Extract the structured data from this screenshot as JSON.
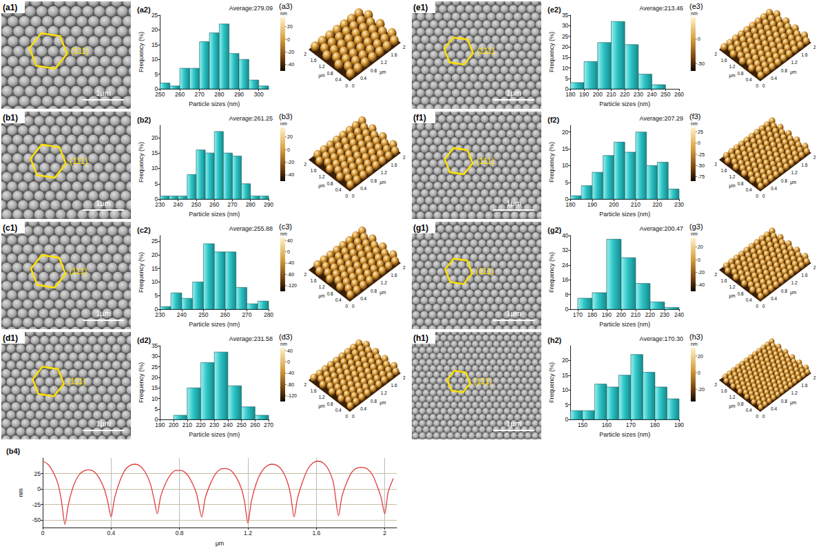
{
  "chart_data": [
    {
      "type": "histogram",
      "title": "(a2)",
      "annotation": "Average:279.09",
      "x_label": "Particle sizes (nm)",
      "y_label": "Frequency (%)",
      "bins": [
        250,
        255,
        260,
        265,
        270,
        275,
        280,
        285,
        290,
        295,
        300,
        305
      ],
      "values": [
        2,
        1,
        7,
        7,
        16,
        19,
        22,
        12,
        10,
        3,
        1
      ],
      "color": "#2ec4c6",
      "xlim": [
        250,
        305
      ],
      "xticks": [
        250,
        260,
        270,
        280,
        290,
        300
      ],
      "ylim": [
        0,
        25
      ],
      "yticks": [
        0,
        5,
        10,
        15,
        20,
        25
      ],
      "grid": false
    },
    {
      "type": "histogram",
      "title": "(b2)",
      "annotation": "Average:261.25",
      "x_label": "Particle sizes (nm)",
      "y_label": "Frequency (%)",
      "bins": [
        230,
        235,
        240,
        245,
        250,
        255,
        260,
        265,
        270,
        275,
        280,
        285,
        290
      ],
      "values": [
        1,
        1,
        1,
        8,
        16,
        15,
        22,
        15,
        14,
        5,
        1,
        1
      ],
      "color": "#2ec4c6",
      "xlim": [
        230,
        290
      ],
      "xticks": [
        230,
        240,
        250,
        260,
        270,
        280,
        290
      ],
      "ylim": [
        0,
        24
      ],
      "yticks": [
        0,
        5,
        10,
        15,
        20
      ],
      "grid": false
    },
    {
      "type": "histogram",
      "title": "(c2)",
      "annotation": "Average:255.88",
      "x_label": "Particle sizes (nm)",
      "y_label": "Frequency (%)",
      "bins": [
        230,
        235,
        240,
        245,
        250,
        255,
        260,
        265,
        270,
        275,
        280
      ],
      "values": [
        1,
        6,
        4,
        10,
        24,
        21,
        21,
        8,
        2,
        3
      ],
      "color": "#2ec4c6",
      "xlim": [
        230,
        280
      ],
      "xticks": [
        230,
        240,
        250,
        260,
        270,
        280
      ],
      "ylim": [
        0,
        27
      ],
      "yticks": [
        0,
        5,
        10,
        15,
        20,
        25
      ],
      "grid": false
    },
    {
      "type": "histogram",
      "title": "(d2)",
      "annotation": "Average:231.58",
      "x_label": "Particle sizes (nm)",
      "y_label": "Frequency (%)",
      "bins": [
        200,
        210,
        220,
        230,
        240,
        250,
        260,
        270
      ],
      "values": [
        2,
        15,
        27,
        32,
        16,
        6,
        2
      ],
      "color": "#2ec4c6",
      "xlim": [
        190,
        270
      ],
      "xticks": [
        190,
        200,
        210,
        220,
        230,
        240,
        250,
        260,
        270
      ],
      "ylim": [
        0,
        35
      ],
      "yticks": [
        0,
        5,
        10,
        15,
        20,
        25,
        30,
        35
      ],
      "grid": false
    },
    {
      "type": "histogram",
      "title": "(e2)",
      "annotation": "Average:213.46",
      "x_label": "Particle sizes (nm)",
      "y_label": "Frequency (%)",
      "bins": [
        180,
        190,
        200,
        210,
        220,
        230,
        240,
        250
      ],
      "values": [
        3,
        13,
        22,
        32,
        21,
        7,
        2
      ],
      "color": "#2ec4c6",
      "xlim": [
        180,
        260
      ],
      "xticks": [
        180,
        190,
        200,
        210,
        220,
        230,
        240,
        250,
        260
      ],
      "ylim": [
        0,
        35
      ],
      "yticks": [
        0,
        5,
        10,
        15,
        20,
        25,
        30,
        35
      ],
      "grid": false
    },
    {
      "type": "histogram",
      "title": "(f2)",
      "annotation": "Average:207.29",
      "x_label": "Particle sizes (nm)",
      "y_label": "Frequency (%)",
      "bins": [
        180,
        185,
        190,
        195,
        200,
        205,
        210,
        215,
        220,
        225,
        230
      ],
      "values": [
        1,
        4,
        8,
        13,
        17,
        14,
        20,
        10,
        11,
        3
      ],
      "color": "#2ec4c6",
      "xlim": [
        180,
        230
      ],
      "xticks": [
        180,
        190,
        200,
        210,
        220,
        230
      ],
      "ylim": [
        0,
        22
      ],
      "yticks": [
        0,
        5,
        10,
        15,
        20
      ],
      "grid": false
    },
    {
      "type": "histogram",
      "title": "(g2)",
      "annotation": "Average:200.47",
      "x_label": "Particle sizes (nm)",
      "y_label": "Frequency (%)",
      "bins": [
        170,
        180,
        190,
        200,
        210,
        220,
        230,
        240
      ],
      "values": [
        6,
        9,
        38,
        28,
        14,
        4,
        1
      ],
      "color": "#2ec4c6",
      "xlim": [
        165,
        240
      ],
      "xticks": [
        170,
        180,
        190,
        200,
        210,
        220,
        230,
        240
      ],
      "ylim": [
        0,
        40
      ],
      "yticks": [
        0,
        8,
        16,
        24,
        32,
        40
      ],
      "grid": false
    },
    {
      "type": "histogram",
      "title": "(h2)",
      "annotation": "Average:170.30",
      "x_label": "Particle sizes (nm)",
      "y_label": "Frequency (%)",
      "bins": [
        145,
        150,
        155,
        160,
        165,
        170,
        175,
        180,
        185,
        190
      ],
      "values": [
        3,
        3,
        12,
        11,
        15,
        22,
        16,
        11,
        7
      ],
      "color": "#2ec4c6",
      "xlim": [
        145,
        190
      ],
      "xticks": [
        150,
        160,
        170,
        180,
        190
      ],
      "ylim": [
        0,
        25
      ],
      "yticks": [
        0,
        5,
        10,
        15,
        20
      ],
      "grid": false
    },
    {
      "type": "line",
      "title": "(b4)",
      "x_label": "μm",
      "y_label": "nm",
      "color": "#e03a3a",
      "grid": true,
      "x": [
        0,
        0.03,
        0.06,
        0.09,
        0.11,
        0.13,
        0.15,
        0.18,
        0.21,
        0.24,
        0.27,
        0.3,
        0.33,
        0.36,
        0.38,
        0.4,
        0.42,
        0.45,
        0.48,
        0.51,
        0.54,
        0.57,
        0.6,
        0.63,
        0.65,
        0.67,
        0.69,
        0.72,
        0.75,
        0.78,
        0.81,
        0.84,
        0.87,
        0.9,
        0.93,
        0.95,
        0.98,
        1.01,
        1.04,
        1.07,
        1.1,
        1.13,
        1.16,
        1.18,
        1.2,
        1.22,
        1.25,
        1.28,
        1.31,
        1.34,
        1.37,
        1.4,
        1.43,
        1.45,
        1.47,
        1.49,
        1.52,
        1.55,
        1.58,
        1.61,
        1.64,
        1.67,
        1.7,
        1.73,
        1.75,
        1.78,
        1.81,
        1.84,
        1.87,
        1.9,
        1.93,
        1.96,
        1.98,
        2.0,
        2.02,
        2.05
      ],
      "values": [
        45,
        40,
        28,
        8,
        -20,
        -57,
        -25,
        5,
        22,
        29,
        31,
        28,
        18,
        0,
        -20,
        -45,
        -15,
        12,
        30,
        38,
        40,
        37,
        27,
        8,
        -15,
        -40,
        -12,
        10,
        24,
        30,
        30,
        25,
        12,
        -8,
        -45,
        -15,
        8,
        24,
        32,
        33,
        30,
        20,
        2,
        -20,
        -55,
        -20,
        10,
        28,
        37,
        40,
        38,
        30,
        12,
        -10,
        -45,
        -15,
        12,
        32,
        42,
        45,
        42,
        32,
        10,
        -43,
        -12,
        12,
        28,
        34,
        35,
        32,
        22,
        2,
        -15,
        -40,
        -5,
        17
      ],
      "xlim": [
        0,
        2.07
      ],
      "xticks": [
        0,
        0.4,
        0.8,
        1.2,
        1.6,
        2
      ],
      "ylim": [
        -62,
        50
      ],
      "yticks": [
        -50,
        -25,
        0,
        25
      ]
    }
  ],
  "sem_images": [
    {
      "label": "(a1)",
      "plane": "(111)",
      "scale_bar": "1μm"
    },
    {
      "label": "(b1)",
      "plane": "(111)",
      "scale_bar": "1μm"
    },
    {
      "label": "(c1)",
      "plane": "(111)",
      "scale_bar": "1μm"
    },
    {
      "label": "(d1)",
      "plane": "(111)",
      "scale_bar": "1μm"
    },
    {
      "label": "(e1)",
      "plane": "(111)",
      "scale_bar": "1μm"
    },
    {
      "label": "(f1)",
      "plane": "(111)",
      "scale_bar": "1μm"
    },
    {
      "label": "(g1)",
      "plane": "(111)",
      "scale_bar": "1μm"
    },
    {
      "label": "(h1)",
      "plane": "(111)",
      "scale_bar": "1μm"
    }
  ],
  "afm_axis": {
    "ticks": [
      "0",
      "0.4",
      "0.8",
      "1.2",
      "1.6",
      "2"
    ],
    "unit": "μm"
  },
  "afm_images": [
    {
      "label": "(a3)",
      "unit": "nm",
      "colorbar_range": [
        -50,
        35
      ],
      "colorbar_ticks": [
        20,
        0,
        -20,
        -40
      ]
    },
    {
      "label": "(b3)",
      "unit": "nm",
      "colorbar_range": [
        -50,
        35
      ],
      "colorbar_ticks": [
        20,
        0,
        -20,
        -40
      ]
    },
    {
      "label": "(c3)",
      "unit": "nm",
      "colorbar_range": [
        -140,
        50
      ],
      "colorbar_ticks": [
        40,
        0,
        -40,
        -80,
        -120
      ]
    },
    {
      "label": "(d3)",
      "unit": "nm",
      "colorbar_range": [
        -140,
        50
      ],
      "colorbar_ticks": [
        40,
        0,
        -40,
        -80,
        -120
      ]
    },
    {
      "label": "(e3)",
      "unit": "nm",
      "colorbar_range": [
        -65,
        45
      ],
      "colorbar_ticks": [
        0,
        -50
      ]
    },
    {
      "label": "(f3)",
      "unit": "nm",
      "colorbar_range": [
        -85,
        35
      ],
      "colorbar_ticks": [
        25,
        0,
        -25,
        -50,
        -75
      ]
    },
    {
      "label": "(g3)",
      "unit": "nm",
      "colorbar_range": [
        -50,
        35
      ],
      "colorbar_ticks": [
        20,
        0,
        -20,
        -40
      ]
    },
    {
      "label": "(h3)",
      "unit": "nm",
      "colorbar_range": [
        -35,
        30
      ],
      "colorbar_ticks": [
        20,
        0,
        -20
      ]
    }
  ]
}
